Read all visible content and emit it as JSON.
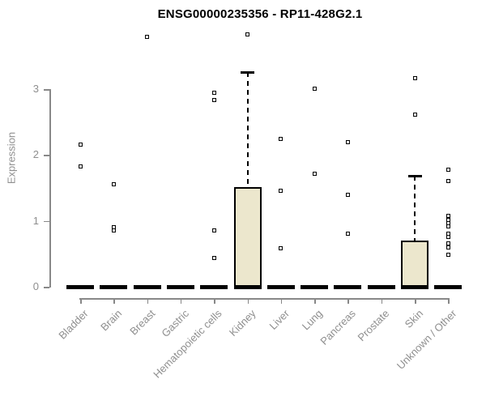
{
  "chart_data": {
    "type": "boxplot",
    "title": "ENSG00000235356 - RP11-428G2.1",
    "ylabel": "Expression",
    "xlabel": "",
    "y_ticks": [
      0,
      1,
      2,
      3
    ],
    "ylim": [
      0,
      3.9
    ],
    "grid": false,
    "categories": [
      "Bladder",
      "Brain",
      "Breast",
      "Gastric",
      "Hematopoietic cells",
      "Kidney",
      "Liver",
      "Lung",
      "Pancreas",
      "Prostate",
      "Skin",
      "Unknown / Other"
    ],
    "series": [
      {
        "category": "Bladder",
        "q1": 0,
        "median": 0,
        "q3": 0,
        "whisker_low": 0,
        "whisker_high": 0,
        "outliers": [
          2.16,
          1.82
        ]
      },
      {
        "category": "Brain",
        "q1": 0,
        "median": 0,
        "q3": 0,
        "whisker_low": 0,
        "whisker_high": 0,
        "outliers": [
          1.55,
          0.9,
          0.85
        ]
      },
      {
        "category": "Breast",
        "q1": 0,
        "median": 0,
        "q3": 0,
        "whisker_low": 0,
        "whisker_high": 0,
        "outliers": [
          3.79
        ]
      },
      {
        "category": "Gastric",
        "q1": 0,
        "median": 0,
        "q3": 0,
        "whisker_low": 0,
        "whisker_high": 0,
        "outliers": []
      },
      {
        "category": "Hematopoietic cells",
        "q1": 0,
        "median": 0,
        "q3": 0,
        "whisker_low": 0,
        "whisker_high": 0,
        "outliers": [
          2.94,
          2.84,
          0.85,
          0.44
        ]
      },
      {
        "category": "Kidney",
        "q1": 0,
        "median": 0,
        "q3": 1.51,
        "whisker_low": 0,
        "whisker_high": 3.26,
        "outliers": [
          3.83
        ]
      },
      {
        "category": "Liver",
        "q1": 0,
        "median": 0,
        "q3": 0,
        "whisker_low": 0,
        "whisker_high": 0,
        "outliers": [
          2.25,
          1.46,
          0.59
        ]
      },
      {
        "category": "Lung",
        "q1": 0,
        "median": 0,
        "q3": 0,
        "whisker_low": 0,
        "whisker_high": 0,
        "outliers": [
          3.01,
          1.72
        ]
      },
      {
        "category": "Pancreas",
        "q1": 0,
        "median": 0,
        "q3": 0,
        "whisker_low": 0,
        "whisker_high": 0,
        "outliers": [
          2.2,
          1.39,
          0.81
        ]
      },
      {
        "category": "Prostate",
        "q1": 0,
        "median": 0,
        "q3": 0,
        "whisker_low": 0,
        "whisker_high": 0,
        "outliers": []
      },
      {
        "category": "Skin",
        "q1": 0,
        "median": 0,
        "q3": 0.7,
        "whisker_low": 0,
        "whisker_high": 1.69,
        "outliers": [
          3.17,
          2.61
        ]
      },
      {
        "category": "Unknown / Other",
        "q1": 0,
        "median": 0,
        "q3": 0,
        "whisker_low": 0,
        "whisker_high": 0,
        "outliers": [
          1.78,
          1.61,
          1.08,
          1.02,
          0.96,
          0.91,
          0.81,
          0.76,
          0.66,
          0.6,
          0.49
        ]
      }
    ],
    "colors": {
      "box_fill": "#ece7cd",
      "box_border": "#000000",
      "median": "#000000",
      "axis": "#888888",
      "tick_label": "#8f8f8f",
      "title": "#000000",
      "point_fill": "#ffffff"
    },
    "legend": null
  }
}
